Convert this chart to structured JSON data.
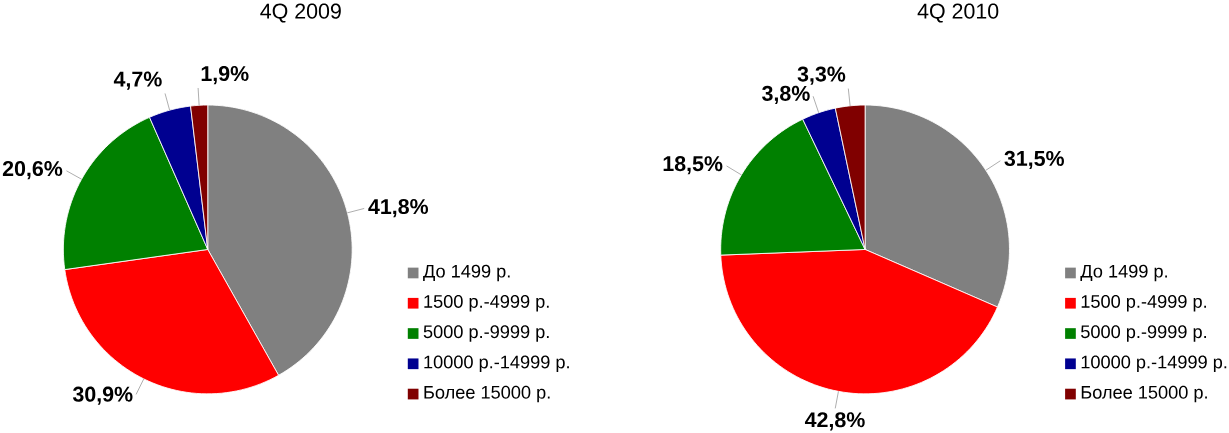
{
  "chart_data": [
    {
      "type": "pie",
      "title": "4Q 2009",
      "categories": [
        "До 1499 р.",
        "1500 р.-4999 р.",
        "5000 р.-9999 р.",
        "10000 р.-14999 р.",
        "Более 15000 р."
      ],
      "values": [
        41.8,
        30.9,
        20.6,
        4.7,
        1.9
      ],
      "value_labels": [
        "41,8%",
        "30,9%",
        "20,6%",
        "4,7%",
        "1,9%"
      ],
      "colors": [
        "#808080",
        "#ff0000",
        "#008000",
        "#000090",
        "#800000"
      ],
      "legend": "right"
    },
    {
      "type": "pie",
      "title": "4Q 2010",
      "categories": [
        "До 1499 р.",
        "1500 р.-4999 р.",
        "5000 р.-9999 р.",
        "10000 р.-14999 р.",
        "Более 15000 р."
      ],
      "values": [
        31.5,
        42.8,
        18.5,
        3.8,
        3.3
      ],
      "value_labels": [
        "31,5%",
        "42,8%",
        "18,5%",
        "3,8%",
        "3,3%"
      ],
      "colors": [
        "#808080",
        "#ff0000",
        "#008000",
        "#000090",
        "#800000"
      ],
      "legend": "right"
    }
  ]
}
